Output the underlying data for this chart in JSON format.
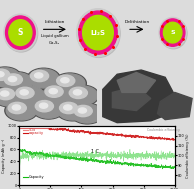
{
  "arrow_label1": "Lithiation",
  "arrow_label2": "Delithiation",
  "sub_label1": "Liquid gallium",
  "sub_label2": "Ga₂S₃",
  "rate_label": "1 C",
  "legend_sga": "SGa",
  "legend_capacity_red": "capacity",
  "legend_ce": "Coulombic efficiency",
  "legend_cap_green": "Capacity",
  "xlabel": "Cycle number",
  "ylabel_left": "Capacity (mAh g⁻¹)",
  "ylabel_right": "Coulombic efficiency (%)",
  "xlim": [
    0,
    1000
  ],
  "ylim_left": [
    0,
    1000
  ],
  "ylim_right": [
    70,
    130
  ],
  "bg_color": "#dcdcdc",
  "plot_bg": "#ffffff",
  "line_red": "#cc1111",
  "line_green": "#11bb11",
  "line_ce": "#33cc33",
  "sphere_yellow_green": "#aadd00",
  "sphere_pink": "#ee1188",
  "sphere_gray": "#c0c0c0",
  "label_color": "white",
  "dot_red": "#ff0000",
  "top_bg": "#dcdcdc",
  "sem_bg_left": "#888888",
  "sem_bg_right": "#aaaaaa"
}
